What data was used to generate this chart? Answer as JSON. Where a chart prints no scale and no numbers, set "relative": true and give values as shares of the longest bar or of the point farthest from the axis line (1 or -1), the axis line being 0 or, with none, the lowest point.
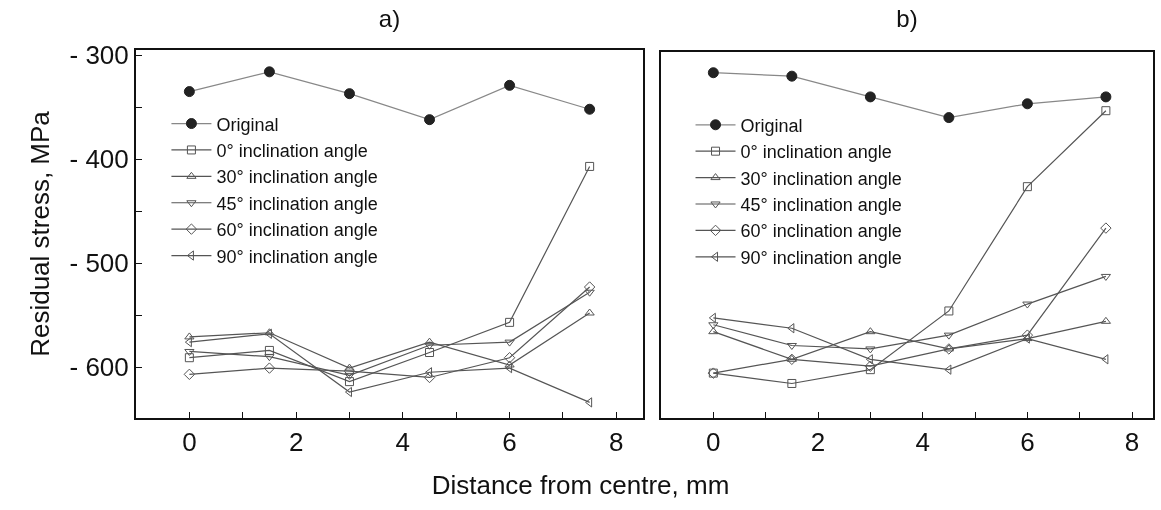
{
  "chart_data": [
    {
      "type": "line",
      "title": "a)",
      "xlabel": "Distance from centre, mm",
      "ylabel": "Residual stress, MPa",
      "x": [
        0,
        1.5,
        3,
        4.5,
        6,
        7.5
      ],
      "xlim": [
        -1,
        8.5
      ],
      "xticks": [
        0,
        {
          "value": 1,
          "label": null
        },
        2,
        {
          "value": 3,
          "label": null
        },
        4,
        {
          "value": 5,
          "label": null
        },
        6,
        {
          "value": 7,
          "label": null
        },
        8
      ],
      "ylim": [
        -649,
        -295
      ],
      "yticks": [
        {
          "value": -300,
          "label": "- 300"
        },
        {
          "value": -350,
          "label": null
        },
        {
          "value": -400,
          "label": "- 400"
        },
        {
          "value": -450,
          "label": null
        },
        {
          "value": -500,
          "label": "- 500"
        },
        {
          "value": -550,
          "label": null
        },
        {
          "value": -600,
          "label": "- 600"
        }
      ],
      "legend": "left",
      "grid": false,
      "line_style": "solid",
      "series": [
        {
          "name": "Original",
          "color": "#222222",
          "marker": "circle",
          "values": [
            -335,
            -316,
            -337,
            -362,
            -329,
            -352
          ]
        },
        {
          "name": "0° inclination angle",
          "color": "#555555",
          "marker": "square",
          "values": [
            -591,
            -584,
            -614,
            -586,
            -557,
            -407
          ]
        },
        {
          "name": "30° inclination angle",
          "color": "#555555",
          "marker": "triangle-up",
          "values": [
            -571,
            -567,
            -601,
            -576,
            -598,
            -548
          ]
        },
        {
          "name": "45° inclination angle",
          "color": "#555555",
          "marker": "triangle-down",
          "values": [
            -585,
            -590,
            -608,
            -579,
            -576,
            -528
          ]
        },
        {
          "name": "60° inclination angle",
          "color": "#555555",
          "marker": "diamond",
          "values": [
            -607,
            -601,
            -604,
            -610,
            -591,
            -523
          ]
        },
        {
          "name": "90° inclination angle",
          "color": "#555555",
          "marker": "triangle-left",
          "values": [
            -576,
            -568,
            -624,
            -605,
            -601,
            -634
          ]
        }
      ]
    },
    {
      "type": "line",
      "title": "b)",
      "relative": true,
      "tick_labels": "x",
      "x": [
        0,
        1.5,
        3,
        4.5,
        6,
        7.5
      ],
      "xlim": [
        -1,
        8.4
      ],
      "xticks": [
        0,
        {
          "value": 1,
          "label": null
        },
        2,
        {
          "value": 3,
          "label": null
        },
        4,
        {
          "value": 5,
          "label": null
        },
        6,
        {
          "value": 7,
          "label": null
        },
        8
      ],
      "legend": "left",
      "grid": false,
      "line_style": "solid",
      "series": [
        {
          "name": "Original",
          "color": "#222222",
          "marker": "circle",
          "values": [
            1.0,
            0.99,
            0.93,
            0.87,
            0.91,
            0.93
          ]
        },
        {
          "name": "0° inclination angle",
          "color": "#555555",
          "marker": "square",
          "values": [
            0.13,
            0.1,
            0.14,
            0.31,
            0.67,
            0.89
          ]
        },
        {
          "name": "30° inclination angle",
          "color": "#555555",
          "marker": "triangle-up",
          "values": [
            0.25,
            0.17,
            0.25,
            0.2,
            0.23,
            0.28
          ]
        },
        {
          "name": "45° inclination angle",
          "color": "#555555",
          "marker": "triangle-down",
          "values": [
            0.27,
            0.21,
            0.2,
            0.24,
            0.33,
            0.41
          ]
        },
        {
          "name": "60° inclination angle",
          "color": "#555555",
          "marker": "diamond",
          "values": [
            0.13,
            0.17,
            0.15,
            0.2,
            0.24,
            0.55
          ]
        },
        {
          "name": "90° inclination angle",
          "color": "#555555",
          "marker": "triangle-left",
          "values": [
            0.29,
            0.26,
            0.17,
            0.14,
            0.23,
            0.17
          ]
        }
      ]
    }
  ]
}
